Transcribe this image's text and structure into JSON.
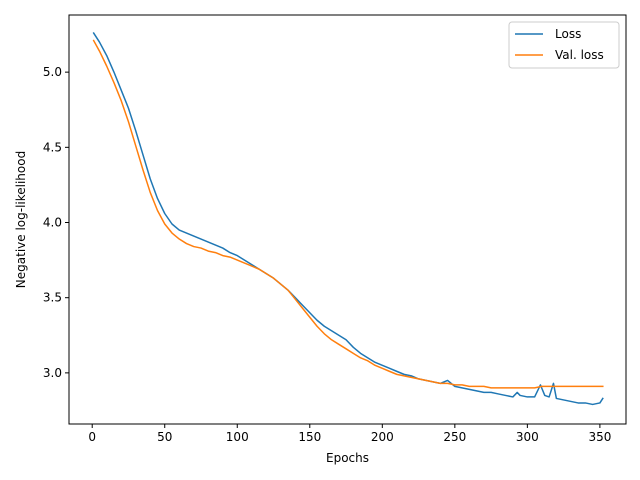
{
  "chart_data": {
    "type": "line",
    "xlabel": "Epochs",
    "ylabel": "Negative log-likelihood",
    "xlim": [
      -16,
      368
    ],
    "ylim": [
      2.66,
      5.38
    ],
    "xticks": [
      0,
      50,
      100,
      150,
      200,
      250,
      300,
      350
    ],
    "yticks": [
      3.0,
      3.5,
      4.0,
      4.5,
      5.0
    ],
    "xtick_labels": [
      "0",
      "50",
      "100",
      "150",
      "200",
      "250",
      "300",
      "350"
    ],
    "ytick_labels": [
      "3.0",
      "3.5",
      "4.0",
      "4.5",
      "5.0"
    ],
    "grid": false,
    "legend_position": "top-right",
    "series": [
      {
        "name": "Loss",
        "color": "#1f77b4",
        "points": [
          [
            1,
            5.26
          ],
          [
            5,
            5.2
          ],
          [
            10,
            5.11
          ],
          [
            15,
            5.0
          ],
          [
            20,
            4.88
          ],
          [
            25,
            4.76
          ],
          [
            30,
            4.61
          ],
          [
            35,
            4.45
          ],
          [
            40,
            4.29
          ],
          [
            45,
            4.16
          ],
          [
            50,
            4.06
          ],
          [
            55,
            3.99
          ],
          [
            60,
            3.95
          ],
          [
            65,
            3.93
          ],
          [
            70,
            3.91
          ],
          [
            75,
            3.89
          ],
          [
            80,
            3.87
          ],
          [
            85,
            3.85
          ],
          [
            90,
            3.83
          ],
          [
            95,
            3.8
          ],
          [
            100,
            3.78
          ],
          [
            105,
            3.75
          ],
          [
            110,
            3.72
          ],
          [
            115,
            3.69
          ],
          [
            120,
            3.66
          ],
          [
            125,
            3.63
          ],
          [
            130,
            3.59
          ],
          [
            135,
            3.55
          ],
          [
            140,
            3.5
          ],
          [
            145,
            3.45
          ],
          [
            150,
            3.4
          ],
          [
            155,
            3.35
          ],
          [
            160,
            3.31
          ],
          [
            165,
            3.28
          ],
          [
            170,
            3.25
          ],
          [
            175,
            3.22
          ],
          [
            180,
            3.17
          ],
          [
            185,
            3.13
          ],
          [
            190,
            3.1
          ],
          [
            195,
            3.07
          ],
          [
            200,
            3.05
          ],
          [
            205,
            3.03
          ],
          [
            210,
            3.01
          ],
          [
            215,
            2.99
          ],
          [
            220,
            2.98
          ],
          [
            225,
            2.96
          ],
          [
            230,
            2.95
          ],
          [
            235,
            2.94
          ],
          [
            240,
            2.93
          ],
          [
            245,
            2.95
          ],
          [
            250,
            2.91
          ],
          [
            255,
            2.9
          ],
          [
            260,
            2.89
          ],
          [
            265,
            2.88
          ],
          [
            270,
            2.87
          ],
          [
            275,
            2.87
          ],
          [
            280,
            2.86
          ],
          [
            285,
            2.85
          ],
          [
            290,
            2.84
          ],
          [
            293,
            2.87
          ],
          [
            295,
            2.85
          ],
          [
            300,
            2.84
          ],
          [
            305,
            2.84
          ],
          [
            309,
            2.92
          ],
          [
            312,
            2.85
          ],
          [
            315,
            2.84
          ],
          [
            318,
            2.93
          ],
          [
            320,
            2.83
          ],
          [
            325,
            2.82
          ],
          [
            330,
            2.81
          ],
          [
            335,
            2.8
          ],
          [
            340,
            2.8
          ],
          [
            345,
            2.79
          ],
          [
            350,
            2.8
          ],
          [
            352,
            2.83
          ]
        ]
      },
      {
        "name": "Val. loss",
        "color": "#ff7f0e",
        "points": [
          [
            1,
            5.21
          ],
          [
            5,
            5.14
          ],
          [
            10,
            5.04
          ],
          [
            15,
            4.93
          ],
          [
            20,
            4.81
          ],
          [
            25,
            4.67
          ],
          [
            30,
            4.51
          ],
          [
            35,
            4.35
          ],
          [
            40,
            4.2
          ],
          [
            45,
            4.08
          ],
          [
            50,
            3.99
          ],
          [
            55,
            3.93
          ],
          [
            60,
            3.89
          ],
          [
            65,
            3.86
          ],
          [
            70,
            3.84
          ],
          [
            75,
            3.83
          ],
          [
            80,
            3.81
          ],
          [
            85,
            3.8
          ],
          [
            90,
            3.78
          ],
          [
            95,
            3.77
          ],
          [
            100,
            3.75
          ],
          [
            105,
            3.73
          ],
          [
            110,
            3.71
          ],
          [
            115,
            3.69
          ],
          [
            120,
            3.66
          ],
          [
            125,
            3.63
          ],
          [
            130,
            3.59
          ],
          [
            135,
            3.55
          ],
          [
            140,
            3.49
          ],
          [
            145,
            3.43
          ],
          [
            150,
            3.37
          ],
          [
            155,
            3.31
          ],
          [
            160,
            3.26
          ],
          [
            165,
            3.22
          ],
          [
            170,
            3.19
          ],
          [
            175,
            3.16
          ],
          [
            180,
            3.13
          ],
          [
            185,
            3.1
          ],
          [
            190,
            3.08
          ],
          [
            195,
            3.05
          ],
          [
            200,
            3.03
          ],
          [
            205,
            3.01
          ],
          [
            210,
            2.99
          ],
          [
            215,
            2.98
          ],
          [
            220,
            2.97
          ],
          [
            225,
            2.96
          ],
          [
            230,
            2.95
          ],
          [
            235,
            2.94
          ],
          [
            240,
            2.93
          ],
          [
            245,
            2.93
          ],
          [
            250,
            2.92
          ],
          [
            255,
            2.92
          ],
          [
            260,
            2.91
          ],
          [
            265,
            2.91
          ],
          [
            270,
            2.91
          ],
          [
            275,
            2.9
          ],
          [
            280,
            2.9
          ],
          [
            285,
            2.9
          ],
          [
            290,
            2.9
          ],
          [
            295,
            2.9
          ],
          [
            300,
            2.9
          ],
          [
            305,
            2.9
          ],
          [
            310,
            2.91
          ],
          [
            315,
            2.91
          ],
          [
            320,
            2.91
          ],
          [
            325,
            2.91
          ],
          [
            330,
            2.91
          ],
          [
            335,
            2.91
          ],
          [
            340,
            2.91
          ],
          [
            345,
            2.91
          ],
          [
            350,
            2.91
          ],
          [
            352,
            2.91
          ]
        ]
      }
    ]
  }
}
